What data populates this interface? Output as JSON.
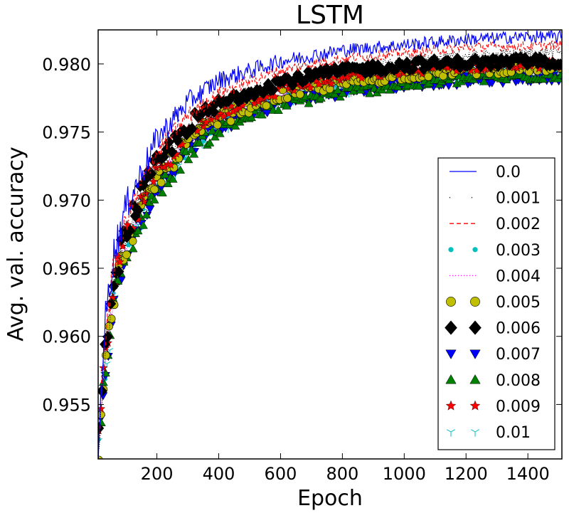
{
  "chart_data": {
    "type": "line",
    "title": "LSTM",
    "xlabel": "Epoch",
    "ylabel": "Avg. val. accuracy",
    "xlim": [
      10,
      1510
    ],
    "ylim": [
      0.951,
      0.9825
    ],
    "xticks": [
      200,
      400,
      600,
      800,
      1000,
      1200,
      1400
    ],
    "xtick_labels": [
      "200",
      "400",
      "600",
      "800",
      "1000",
      "1200",
      "1400"
    ],
    "yticks": [
      0.955,
      0.96,
      0.965,
      0.97,
      0.975,
      0.98
    ],
    "ytick_labels": [
      "0.955",
      "0.960",
      "0.965",
      "0.970",
      "0.975",
      "0.980"
    ],
    "grid": false,
    "legend_position": "lower-right",
    "series": [
      {
        "name": "0.0",
        "style": "solid",
        "marker": "none",
        "color": "#0000ff",
        "points": [
          [
            10,
            0.9515
          ],
          [
            30,
            0.9605
          ],
          [
            60,
            0.966
          ],
          [
            100,
            0.9695
          ],
          [
            150,
            0.972
          ],
          [
            200,
            0.9745
          ],
          [
            300,
            0.9772
          ],
          [
            400,
            0.9788
          ],
          [
            500,
            0.9795
          ],
          [
            600,
            0.9802
          ],
          [
            700,
            0.9806
          ],
          [
            800,
            0.981
          ],
          [
            900,
            0.9812
          ],
          [
            1000,
            0.9814
          ],
          [
            1100,
            0.9816
          ],
          [
            1200,
            0.9818
          ],
          [
            1300,
            0.9819
          ],
          [
            1400,
            0.982
          ],
          [
            1500,
            0.982
          ]
        ]
      },
      {
        "name": "0.001",
        "style": "dotted",
        "marker": "none",
        "color": "#000000",
        "points": [
          [
            10,
            0.9515
          ],
          [
            30,
            0.958
          ],
          [
            60,
            0.964
          ],
          [
            100,
            0.9675
          ],
          [
            150,
            0.97
          ],
          [
            200,
            0.9725
          ],
          [
            300,
            0.9752
          ],
          [
            400,
            0.9768
          ],
          [
            500,
            0.9779
          ],
          [
            600,
            0.9786
          ],
          [
            700,
            0.979
          ],
          [
            800,
            0.9795
          ],
          [
            900,
            0.9799
          ],
          [
            1000,
            0.9802
          ],
          [
            1100,
            0.9804
          ],
          [
            1200,
            0.9806
          ],
          [
            1300,
            0.9807
          ],
          [
            1400,
            0.9808
          ],
          [
            1500,
            0.9809
          ]
        ]
      },
      {
        "name": "0.002",
        "style": "dashed",
        "marker": "none",
        "color": "#ff0000",
        "points": [
          [
            10,
            0.9515
          ],
          [
            30,
            0.9595
          ],
          [
            60,
            0.965
          ],
          [
            100,
            0.9685
          ],
          [
            150,
            0.9712
          ],
          [
            200,
            0.9735
          ],
          [
            300,
            0.9762
          ],
          [
            400,
            0.9778
          ],
          [
            500,
            0.9788
          ],
          [
            600,
            0.9795
          ],
          [
            700,
            0.98
          ],
          [
            800,
            0.9804
          ],
          [
            900,
            0.9806
          ],
          [
            1000,
            0.9808
          ],
          [
            1100,
            0.981
          ],
          [
            1200,
            0.9812
          ],
          [
            1300,
            0.9813
          ],
          [
            1400,
            0.9813
          ],
          [
            1500,
            0.9814
          ]
        ]
      },
      {
        "name": "0.003",
        "style": "markers",
        "marker": "dot",
        "color": "#00bfbf",
        "points": [
          [
            10,
            0.9515
          ],
          [
            30,
            0.957
          ],
          [
            60,
            0.963
          ],
          [
            100,
            0.9665
          ],
          [
            150,
            0.969
          ],
          [
            200,
            0.9712
          ],
          [
            300,
            0.974
          ],
          [
            400,
            0.9756
          ],
          [
            500,
            0.9767
          ],
          [
            600,
            0.9775
          ],
          [
            700,
            0.978
          ],
          [
            800,
            0.9784
          ],
          [
            900,
            0.9787
          ],
          [
            1000,
            0.979
          ],
          [
            1100,
            0.9792
          ],
          [
            1200,
            0.9794
          ],
          [
            1300,
            0.9795
          ],
          [
            1400,
            0.9796
          ],
          [
            1500,
            0.9797
          ]
        ]
      },
      {
        "name": "0.004",
        "style": "dotted",
        "marker": "none",
        "color": "#ff00ff",
        "points": [
          [
            10,
            0.9515
          ],
          [
            30,
            0.957
          ],
          [
            60,
            0.963
          ],
          [
            100,
            0.9667
          ],
          [
            150,
            0.9692
          ],
          [
            200,
            0.9714
          ],
          [
            300,
            0.9742
          ],
          [
            400,
            0.9758
          ],
          [
            500,
            0.9768
          ],
          [
            600,
            0.9776
          ],
          [
            700,
            0.9781
          ],
          [
            800,
            0.9785
          ],
          [
            900,
            0.9788
          ],
          [
            1000,
            0.9791
          ],
          [
            1100,
            0.9793
          ],
          [
            1200,
            0.9795
          ],
          [
            1300,
            0.9796
          ],
          [
            1400,
            0.9797
          ],
          [
            1500,
            0.9798
          ]
        ]
      },
      {
        "name": "0.005",
        "style": "markers",
        "marker": "circle",
        "color": "#bfbf00",
        "points": [
          [
            10,
            0.9515
          ],
          [
            30,
            0.957
          ],
          [
            60,
            0.963
          ],
          [
            100,
            0.9667
          ],
          [
            150,
            0.9693
          ],
          [
            200,
            0.9715
          ],
          [
            300,
            0.9743
          ],
          [
            400,
            0.9759
          ],
          [
            500,
            0.9769
          ],
          [
            600,
            0.9777
          ],
          [
            700,
            0.9782
          ],
          [
            800,
            0.9786
          ],
          [
            900,
            0.9789
          ],
          [
            1000,
            0.9792
          ],
          [
            1100,
            0.9794
          ],
          [
            1200,
            0.9795
          ],
          [
            1300,
            0.9796
          ],
          [
            1400,
            0.9797
          ],
          [
            1500,
            0.9798
          ]
        ]
      },
      {
        "name": "0.006",
        "style": "markers",
        "marker": "diamond",
        "color": "#000000",
        "points": [
          [
            10,
            0.9515
          ],
          [
            30,
            0.958
          ],
          [
            60,
            0.9642
          ],
          [
            100,
            0.9678
          ],
          [
            150,
            0.9704
          ],
          [
            200,
            0.9726
          ],
          [
            300,
            0.9755
          ],
          [
            400,
            0.977
          ],
          [
            500,
            0.978
          ],
          [
            600,
            0.9787
          ],
          [
            700,
            0.9791
          ],
          [
            800,
            0.9795
          ],
          [
            900,
            0.9797
          ],
          [
            1000,
            0.9799
          ],
          [
            1100,
            0.98
          ],
          [
            1200,
            0.9801
          ],
          [
            1300,
            0.9801
          ],
          [
            1400,
            0.9802
          ],
          [
            1500,
            0.9802
          ]
        ]
      },
      {
        "name": "0.007",
        "style": "markers",
        "marker": "tri_down",
        "color": "#0000ff",
        "points": [
          [
            10,
            0.9515
          ],
          [
            30,
            0.9568
          ],
          [
            60,
            0.9628
          ],
          [
            100,
            0.9663
          ],
          [
            150,
            0.9688
          ],
          [
            200,
            0.971
          ],
          [
            300,
            0.9738
          ],
          [
            400,
            0.9754
          ],
          [
            500,
            0.9764
          ],
          [
            600,
            0.9771
          ],
          [
            700,
            0.9776
          ],
          [
            800,
            0.978
          ],
          [
            900,
            0.9783
          ],
          [
            1000,
            0.9785
          ],
          [
            1100,
            0.9787
          ],
          [
            1200,
            0.9788
          ],
          [
            1300,
            0.9789
          ],
          [
            1400,
            0.979
          ],
          [
            1500,
            0.9791
          ]
        ]
      },
      {
        "name": "0.008",
        "style": "markers",
        "marker": "tri_up",
        "color": "#008000",
        "points": [
          [
            10,
            0.9515
          ],
          [
            30,
            0.9565
          ],
          [
            60,
            0.9625
          ],
          [
            100,
            0.966
          ],
          [
            150,
            0.9685
          ],
          [
            200,
            0.9707
          ],
          [
            300,
            0.9735
          ],
          [
            400,
            0.9752
          ],
          [
            500,
            0.9762
          ],
          [
            600,
            0.977
          ],
          [
            700,
            0.9775
          ],
          [
            800,
            0.9779
          ],
          [
            900,
            0.9782
          ],
          [
            1000,
            0.9785
          ],
          [
            1100,
            0.9787
          ],
          [
            1200,
            0.9789
          ],
          [
            1300,
            0.979
          ],
          [
            1400,
            0.9791
          ],
          [
            1500,
            0.9792
          ]
        ]
      },
      {
        "name": "0.009",
        "style": "markers",
        "marker": "star",
        "color": "#ff0000",
        "points": [
          [
            10,
            0.9515
          ],
          [
            30,
            0.9575
          ],
          [
            60,
            0.9637
          ],
          [
            100,
            0.9672
          ],
          [
            150,
            0.9698
          ],
          [
            200,
            0.972
          ],
          [
            300,
            0.9748
          ],
          [
            400,
            0.9764
          ],
          [
            500,
            0.9774
          ],
          [
            600,
            0.9781
          ],
          [
            700,
            0.9786
          ],
          [
            800,
            0.979
          ],
          [
            900,
            0.9793
          ],
          [
            1000,
            0.9795
          ],
          [
            1100,
            0.9797
          ],
          [
            1200,
            0.9798
          ],
          [
            1300,
            0.9799
          ],
          [
            1400,
            0.98
          ],
          [
            1500,
            0.98
          ]
        ]
      },
      {
        "name": "0.01",
        "style": "markers",
        "marker": "tri_y",
        "color": "#00bfbf",
        "points": [
          [
            10,
            0.9515
          ],
          [
            30,
            0.9565
          ],
          [
            60,
            0.9626
          ],
          [
            100,
            0.9661
          ],
          [
            150,
            0.9686
          ],
          [
            200,
            0.9708
          ],
          [
            300,
            0.9736
          ],
          [
            400,
            0.9753
          ],
          [
            500,
            0.9764
          ],
          [
            600,
            0.9772
          ],
          [
            700,
            0.9777
          ],
          [
            800,
            0.9781
          ],
          [
            900,
            0.9784
          ],
          [
            1000,
            0.9787
          ],
          [
            1100,
            0.9789
          ],
          [
            1200,
            0.979
          ],
          [
            1300,
            0.9791
          ],
          [
            1400,
            0.9792
          ],
          [
            1500,
            0.9793
          ]
        ]
      }
    ]
  }
}
